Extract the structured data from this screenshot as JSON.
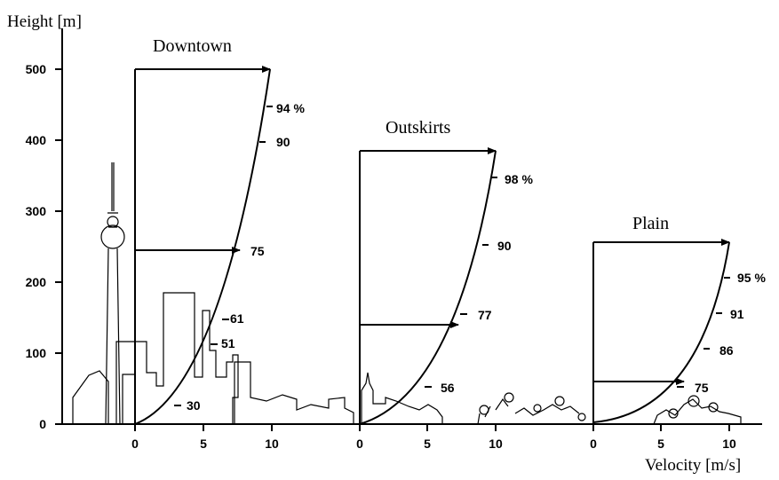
{
  "y_axis_label": "Height [m]",
  "x_axis_label": "Velocity [m/s]",
  "y_ticks": [
    "0",
    "100",
    "200",
    "300",
    "400",
    "500"
  ],
  "panels": [
    {
      "title": "Downtown",
      "x_ticks": [
        "0",
        "5",
        "10"
      ],
      "top_height_m": 500,
      "percent_labels": [
        {
          "text": "94 %",
          "height_m": 445
        },
        {
          "text": "90",
          "height_m": 400
        },
        {
          "text": "75",
          "height_m": 245
        },
        {
          "text": "61",
          "height_m": 148
        },
        {
          "text": "51",
          "height_m": 112
        },
        {
          "text": "30",
          "height_m": 28
        }
      ]
    },
    {
      "title": "Outskirts",
      "x_ticks": [
        "0",
        "5",
        "10"
      ],
      "top_height_m": 385,
      "percent_labels": [
        {
          "text": "98 %",
          "height_m": 345
        },
        {
          "text": "90",
          "height_m": 250
        },
        {
          "text": "77",
          "height_m": 153
        },
        {
          "text": "56",
          "height_m": 52
        }
      ]
    },
    {
      "title": "Plain",
      "x_ticks": [
        "0",
        "5",
        "10"
      ],
      "top_height_m": 255,
      "percent_labels": [
        {
          "text": "95 %",
          "height_m": 205
        },
        {
          "text": "91",
          "height_m": 155
        },
        {
          "text": "86",
          "height_m": 105
        },
        {
          "text": "75",
          "height_m": 52
        }
      ]
    }
  ]
}
